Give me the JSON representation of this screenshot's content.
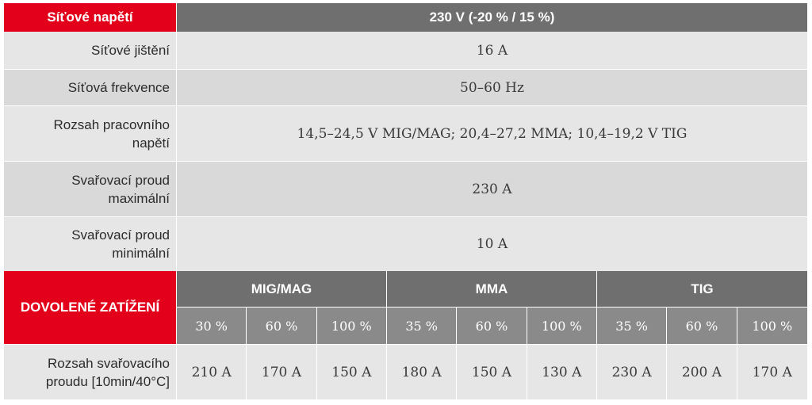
{
  "header": {
    "label": "Síťové napětí",
    "value": "230 V (-20 % / 15 %)"
  },
  "rows": [
    {
      "label": "Síťové jištění",
      "value": "16 A"
    },
    {
      "label": "Síťová frekvence",
      "value": "50–60 Hz"
    },
    {
      "label_lines": [
        "Rozsah pracovního",
        "napětí"
      ],
      "value": "14,5–24,5 V MIG/MAG; 20,4–27,2 MMA; 10,4–19,2 V TIG"
    },
    {
      "label_lines": [
        "Svařovací proud",
        "maximální"
      ],
      "value": "230 A"
    },
    {
      "label_lines": [
        "Svařovací proud",
        "minimální"
      ],
      "value": "10 A"
    }
  ],
  "duty": {
    "title": "DOVOLENÉ ZATÍŽENÍ",
    "groups": [
      "MIG/MAG",
      "MMA",
      "TIG"
    ],
    "percents": [
      "30 %",
      "60 %",
      "100 %",
      "35 %",
      "60 %",
      "100 %",
      "35 %",
      "60 %",
      "100 %"
    ],
    "row_label_lines": [
      "Rozsah svařovacího",
      "proudu [10min/40°C]"
    ],
    "values": [
      "210 A",
      "170 A",
      "150 A",
      "180 A",
      "150 A",
      "130 A",
      "230 A",
      "200 A",
      "170 A"
    ]
  },
  "colors": {
    "accent_red": "#e2001a",
    "header_gray": "#6f6f6f",
    "sub_gray": "#8a8a8a",
    "row_light": "#e6e6e6",
    "row_alt": "#d9d9d9"
  }
}
